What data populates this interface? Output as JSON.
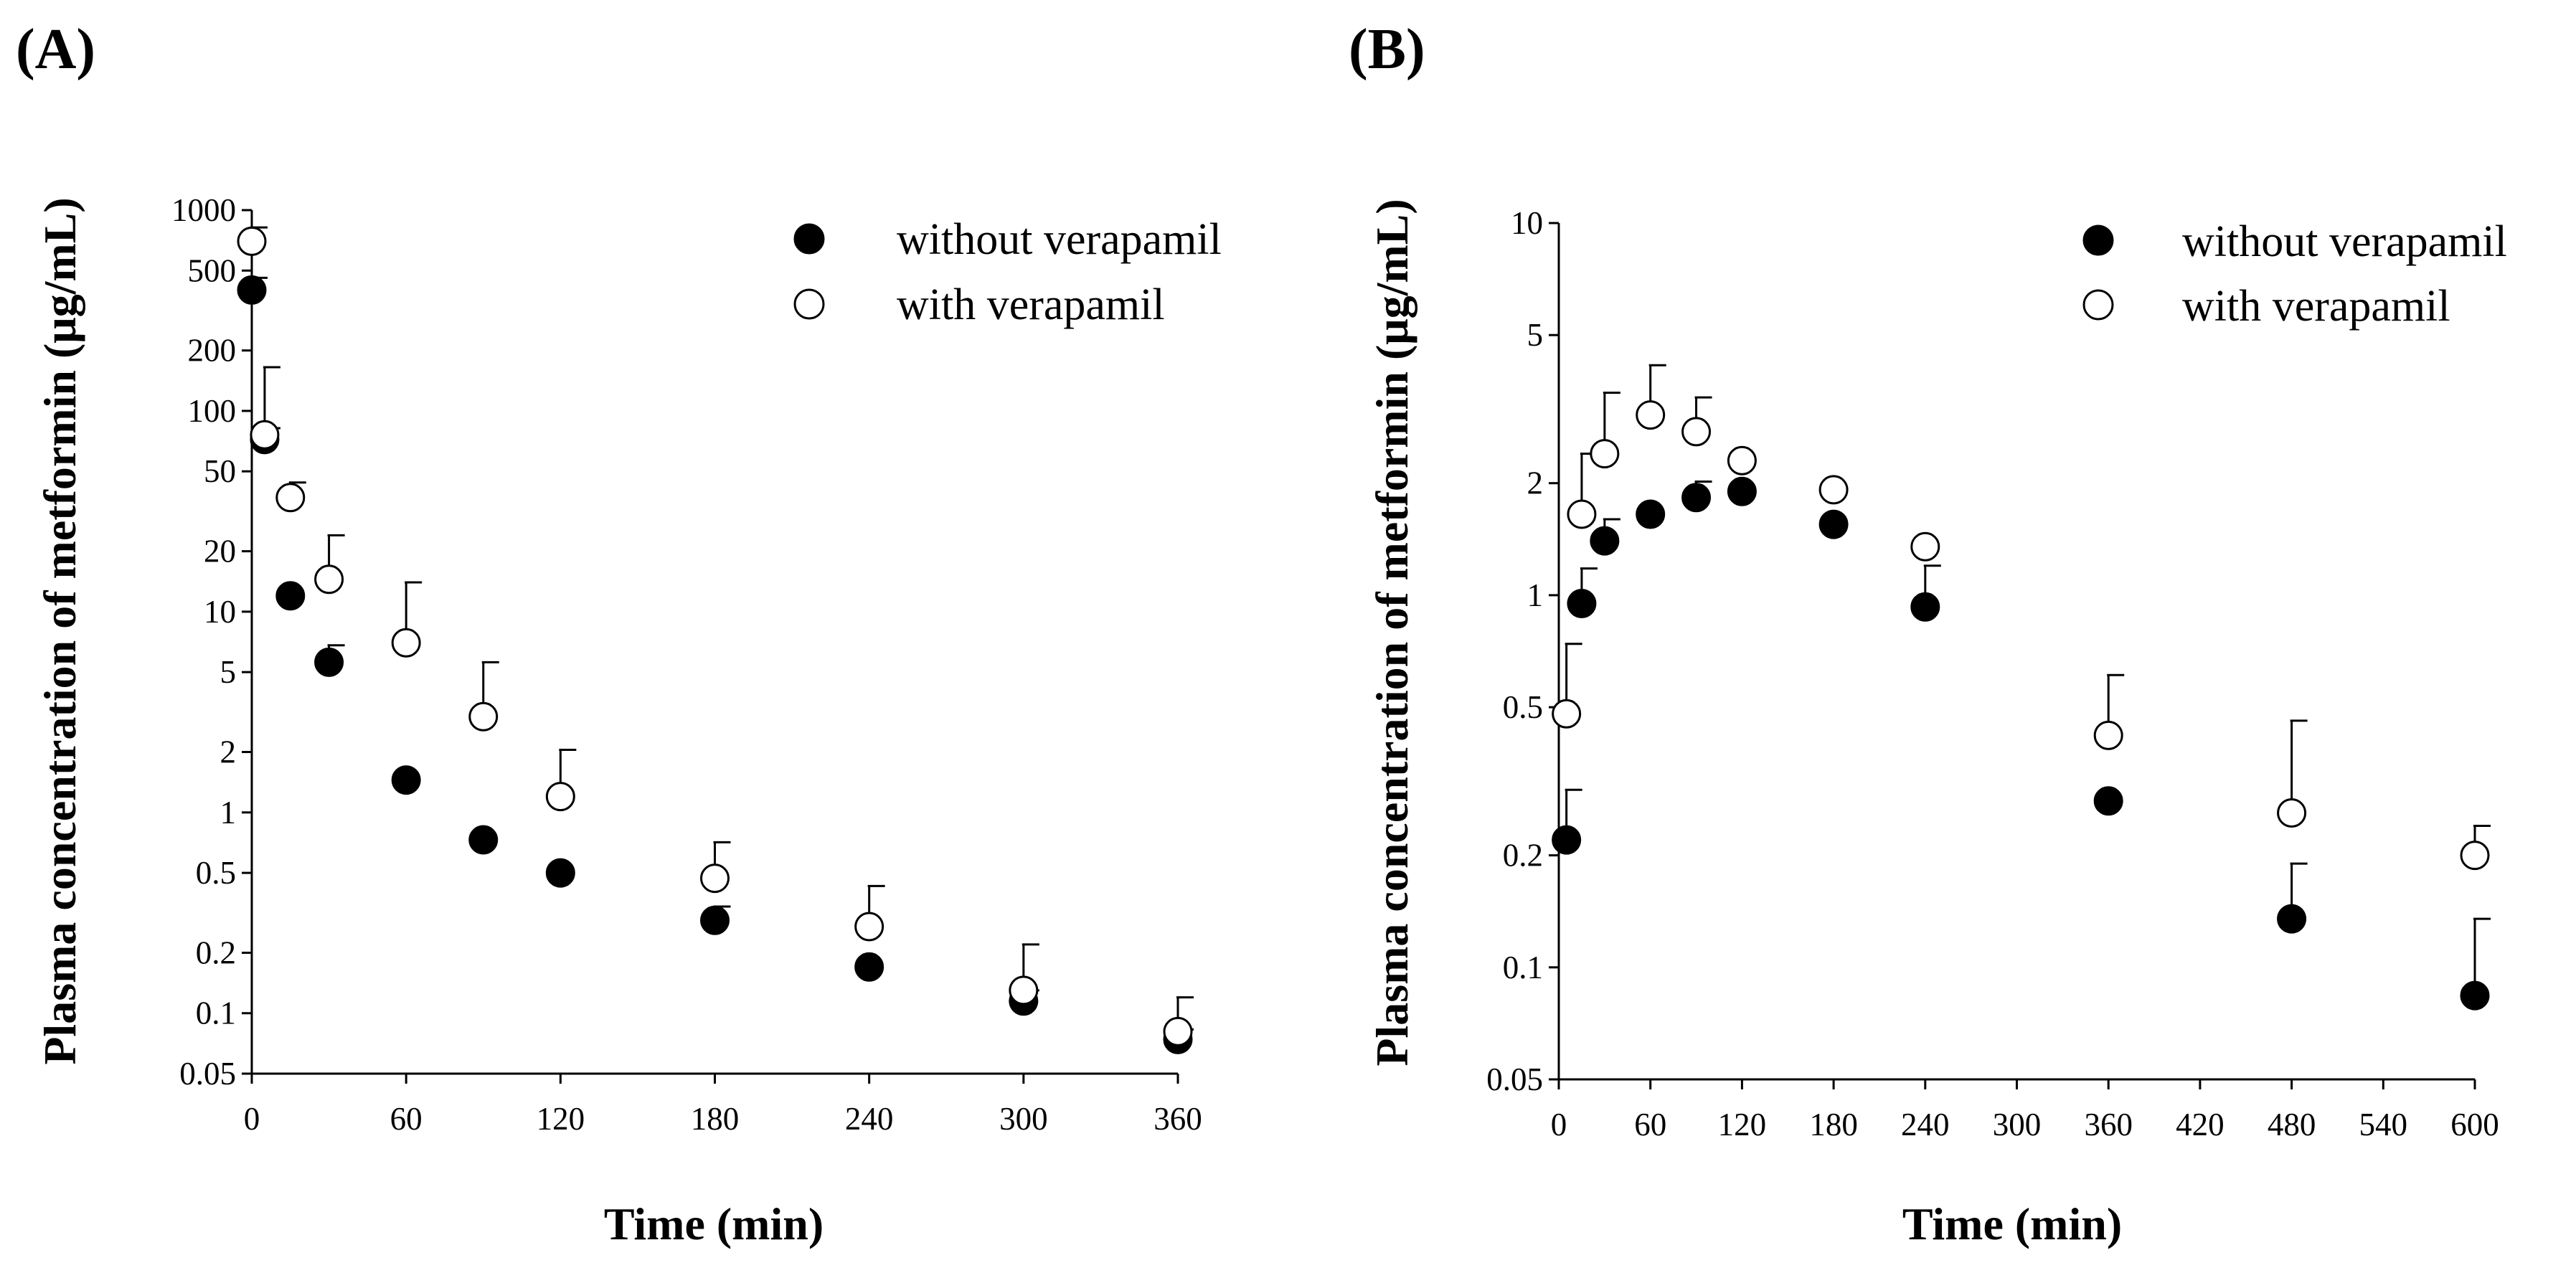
{
  "chart_data": [
    {
      "type": "scatter",
      "panel_label": "(A)",
      "xlabel": "Time (min)",
      "ylabel": "Plasma concentration of metformin (μg/mL)",
      "yscale": "log",
      "xlim": [
        0,
        360
      ],
      "ylim": [
        0.05,
        1000
      ],
      "xticks": [
        "0",
        "60",
        "120",
        "180",
        "240",
        "300",
        "360"
      ],
      "yticks": [
        "1000",
        "500",
        "200",
        "100",
        "50",
        "20",
        "10",
        "5",
        "2",
        "1",
        "0.5",
        "0.2",
        "0.1",
        "0.05"
      ],
      "legend": [
        "without verapamil",
        "with verapamil"
      ],
      "legend_position": "top-right",
      "series": [
        {
          "name": "without verapamil",
          "marker": "filled-circle",
          "x": [
            0,
            5,
            15,
            30,
            60,
            90,
            120,
            180,
            240,
            300,
            360
          ],
          "y": [
            400,
            72,
            12,
            5.6,
            1.45,
            0.73,
            0.5,
            0.29,
            0.17,
            0.115,
            0.074
          ],
          "error_upper": [
            460,
            82,
            12,
            6.8,
            1.45,
            0.73,
            0.5,
            0.34,
            0.17,
            0.13,
            0.083
          ]
        },
        {
          "name": "with verapamil",
          "marker": "open-circle",
          "x": [
            0,
            5,
            15,
            30,
            60,
            90,
            120,
            180,
            240,
            300,
            360
          ],
          "y": [
            700,
            76,
            37,
            14.5,
            7,
            3,
            1.2,
            0.47,
            0.27,
            0.13,
            0.081
          ],
          "error_upper": [
            820,
            165,
            44,
            24,
            14,
            5.6,
            2.05,
            0.71,
            0.43,
            0.22,
            0.12
          ]
        }
      ]
    },
    {
      "type": "scatter",
      "panel_label": "(B)",
      "xlabel": "Time (min)",
      "ylabel": "Plasma concentration of metformin (μg/mL)",
      "yscale": "log",
      "xlim": [
        0,
        600
      ],
      "ylim": [
        0.05,
        10
      ],
      "xticks": [
        "0",
        "60",
        "120",
        "180",
        "240",
        "300",
        "360",
        "420",
        "480",
        "540",
        "600"
      ],
      "yticks": [
        "10",
        "5",
        "2",
        "1",
        "0.5",
        "0.2",
        "0.1",
        "0.05"
      ],
      "legend": [
        "without verapamil",
        "with verapamil"
      ],
      "legend_position": "top-right",
      "series": [
        {
          "name": "without verapamil",
          "marker": "filled-circle",
          "x": [
            5,
            15,
            30,
            60,
            90,
            120,
            180,
            240,
            360,
            480,
            600
          ],
          "y": [
            0.22,
            0.95,
            1.4,
            1.65,
            1.83,
            1.9,
            1.55,
            0.93,
            0.28,
            0.135,
            0.084
          ],
          "error_upper": [
            0.3,
            1.18,
            1.6,
            1.65,
            2.02,
            1.9,
            1.55,
            1.2,
            0.28,
            0.19,
            0.135
          ]
        },
        {
          "name": "with verapamil",
          "marker": "open-circle",
          "x": [
            5,
            15,
            30,
            60,
            90,
            120,
            180,
            240,
            360,
            480,
            600
          ],
          "y": [
            0.48,
            1.65,
            2.4,
            3.05,
            2.75,
            2.3,
            1.92,
            1.35,
            0.42,
            0.26,
            0.2
          ],
          "error_upper": [
            0.74,
            2.4,
            3.5,
            4.15,
            3.4,
            2.3,
            1.92,
            1.35,
            0.61,
            0.46,
            0.24
          ]
        }
      ]
    }
  ]
}
